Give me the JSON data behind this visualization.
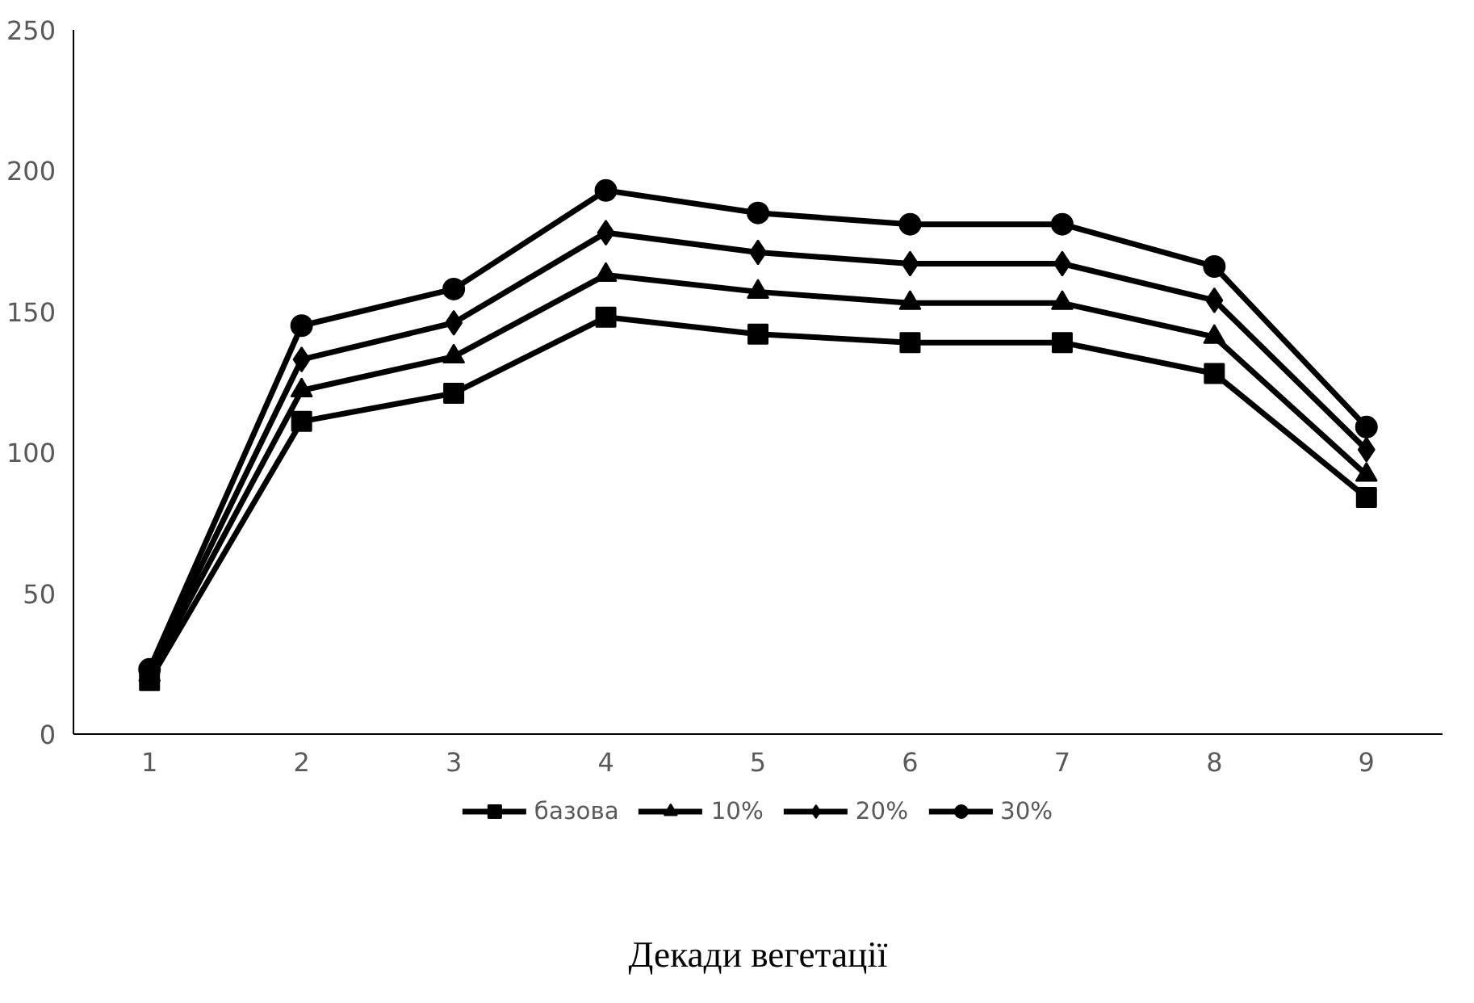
{
  "chart_data": {
    "type": "line",
    "xlabel": "Декади вегетації",
    "categories": [
      "1",
      "2",
      "3",
      "4",
      "5",
      "6",
      "7",
      "8",
      "9"
    ],
    "ylim": [
      0,
      250
    ],
    "yticks": [
      0,
      50,
      100,
      150,
      200,
      250
    ],
    "grid": false,
    "legend": "bottom",
    "line_style": "solid",
    "series": [
      {
        "name": "базова",
        "color": "#000000",
        "marker": "square",
        "values": [
          19,
          111,
          121,
          148,
          142,
          139,
          139,
          128,
          84
        ]
      },
      {
        "name": "10%",
        "color": "#000000",
        "marker": "triangle",
        "values": [
          21,
          122,
          134,
          163,
          157,
          153,
          153,
          141,
          92
        ]
      },
      {
        "name": "20%",
        "color": "#000000",
        "marker": "diamond",
        "values": [
          22,
          133,
          146,
          178,
          171,
          167,
          167,
          154,
          101
        ]
      },
      {
        "name": "30%",
        "color": "#000000",
        "marker": "circle",
        "values": [
          23,
          145,
          158,
          193,
          185,
          181,
          181,
          166,
          109
        ]
      }
    ]
  }
}
